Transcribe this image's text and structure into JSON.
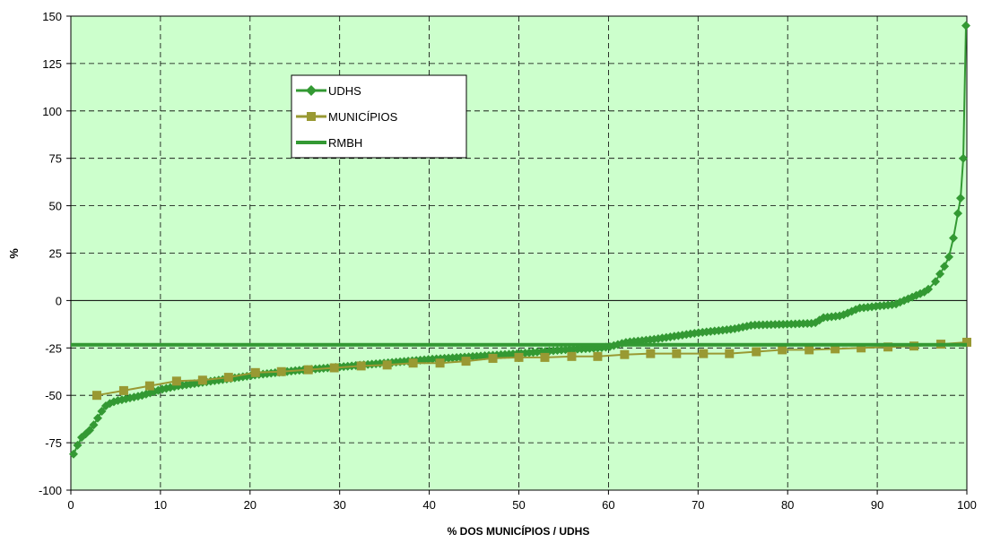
{
  "chart_data": {
    "type": "line",
    "title": "",
    "xlabel": "% DOS MUNICÍPIOS / UDHS",
    "ylabel": "%",
    "xlim": [
      0,
      100
    ],
    "ylim": [
      -100,
      150
    ],
    "x_ticks": [
      0,
      10,
      20,
      30,
      40,
      50,
      60,
      70,
      80,
      90,
      100
    ],
    "y_ticks": [
      -100,
      -75,
      -50,
      -25,
      0,
      25,
      50,
      75,
      100,
      125,
      150
    ],
    "grid": true,
    "legend_position": "upper-left-inside",
    "colors": {
      "plot_background": "#ccffcc",
      "udhs": "#339933",
      "municipios": "#999933",
      "rmbh": "#339933",
      "grid": "#000000"
    },
    "series": [
      {
        "name": "UDHS",
        "marker": "diamond",
        "key": "udhs",
        "anchors": [
          [
            0.3,
            -81
          ],
          [
            0.7,
            -77
          ],
          [
            1.0,
            -73
          ],
          [
            1.5,
            -71
          ],
          [
            2.0,
            -69
          ],
          [
            2.5,
            -66
          ],
          [
            3.0,
            -62
          ],
          [
            3.5,
            -58
          ],
          [
            4.0,
            -55
          ],
          [
            5.0,
            -53
          ],
          [
            6.0,
            -52
          ],
          [
            8.0,
            -50
          ],
          [
            10.0,
            -47
          ],
          [
            12.0,
            -45
          ],
          [
            15.0,
            -43
          ],
          [
            18.0,
            -41
          ],
          [
            21.0,
            -39
          ],
          [
            25.0,
            -37
          ],
          [
            30.0,
            -35
          ],
          [
            35.0,
            -33
          ],
          [
            40.0,
            -31
          ],
          [
            45.0,
            -29.5
          ],
          [
            50.0,
            -28
          ],
          [
            55.0,
            -26
          ],
          [
            59.0,
            -25
          ],
          [
            60.0,
            -24.5
          ],
          [
            62.0,
            -22
          ],
          [
            65.0,
            -20.5
          ],
          [
            70.0,
            -17
          ],
          [
            74.0,
            -15
          ],
          [
            76.0,
            -13
          ],
          [
            83.0,
            -12
          ],
          [
            84.0,
            -9
          ],
          [
            86.0,
            -8
          ],
          [
            87.0,
            -6
          ],
          [
            88.0,
            -4
          ],
          [
            90.0,
            -3
          ],
          [
            92.0,
            -2
          ],
          [
            93.0,
            0
          ],
          [
            94.0,
            2
          ],
          [
            95.5,
            5
          ],
          [
            96.5,
            10
          ],
          [
            97.0,
            14
          ],
          [
            97.5,
            18
          ],
          [
            98.0,
            23
          ],
          [
            98.5,
            33
          ],
          [
            99.0,
            46
          ],
          [
            99.3,
            54
          ],
          [
            99.6,
            75
          ],
          [
            99.9,
            145
          ]
        ]
      },
      {
        "name": "MUNICÍPIOS",
        "marker": "square",
        "key": "municipios",
        "x": [
          2.9,
          5.9,
          8.8,
          11.8,
          14.7,
          17.6,
          20.6,
          23.5,
          26.5,
          29.4,
          32.4,
          35.3,
          38.2,
          41.2,
          44.1,
          47.1,
          50.0,
          52.9,
          55.9,
          58.8,
          61.8,
          64.7,
          67.6,
          70.6,
          73.5,
          76.5,
          79.4,
          82.4,
          85.3,
          88.2,
          91.2,
          94.1,
          97.1,
          100.0
        ],
        "values": [
          -50,
          -47.5,
          -45,
          -42.5,
          -42,
          -40.5,
          -38,
          -37.5,
          -36.5,
          -35.5,
          -34.5,
          -34,
          -33,
          -33,
          -32,
          -30.5,
          -30,
          -30,
          -29.5,
          -29.5,
          -28.5,
          -28,
          -28,
          -28,
          -28,
          -27,
          -26,
          -26,
          -25.5,
          -25,
          -24.5,
          -24,
          -23,
          -22
        ]
      },
      {
        "name": "RMBH",
        "marker": "none",
        "key": "rmbh",
        "x": [
          0,
          100
        ],
        "values": [
          -23.3,
          -23.3
        ]
      }
    ]
  }
}
